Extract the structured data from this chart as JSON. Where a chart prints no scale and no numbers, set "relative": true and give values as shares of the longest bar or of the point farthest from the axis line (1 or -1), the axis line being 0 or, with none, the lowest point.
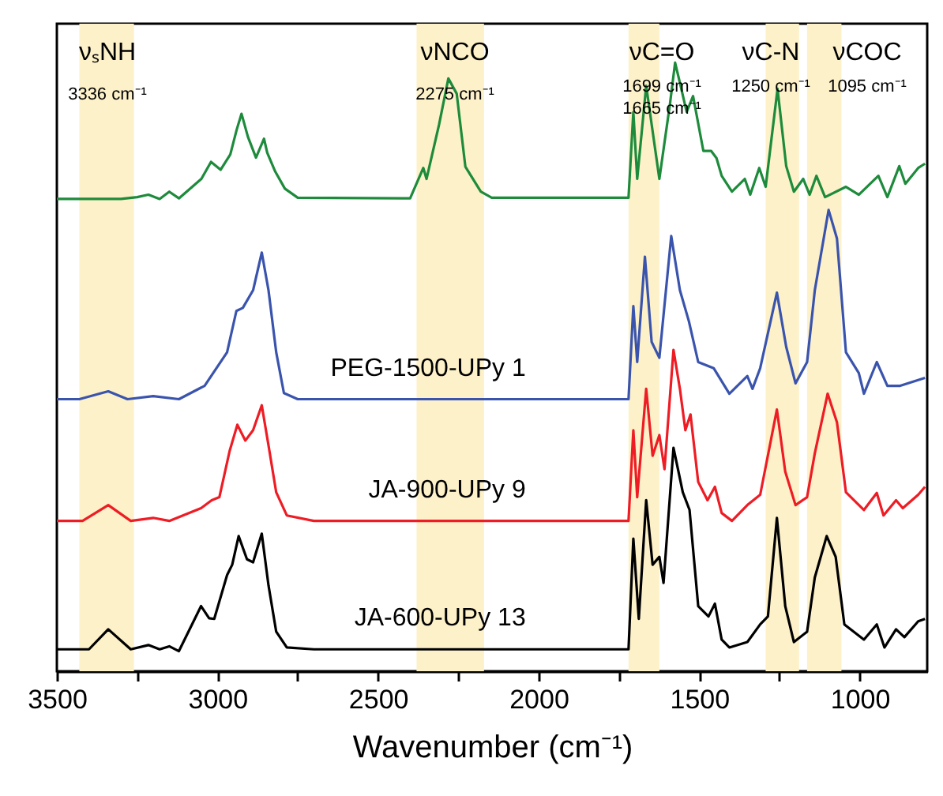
{
  "chart_data": {
    "type": "line",
    "xlabel": "Wavenumber (cm⁻¹)",
    "relative": true,
    "legend": false,
    "xlim": [
      3500,
      790
    ],
    "xticks": [
      {
        "value": 3500,
        "label": "3500"
      },
      {
        "value": 3250,
        "label": null
      },
      {
        "value": 3000,
        "label": "3000"
      },
      {
        "value": 2750,
        "label": null
      },
      {
        "value": 2500,
        "label": "2500"
      },
      {
        "value": 2250,
        "label": null
      },
      {
        "value": 2000,
        "label": "2000"
      },
      {
        "value": 1750,
        "label": null
      },
      {
        "value": 1500,
        "label": "1500"
      },
      {
        "value": 1250,
        "label": null
      },
      {
        "value": 1000,
        "label": "1000"
      }
    ],
    "bands": [
      {
        "axis": "x",
        "from": 3430,
        "to": 3260,
        "color": "#fdf1c9"
      },
      {
        "axis": "x",
        "from": 2380,
        "to": 2170,
        "color": "#fdf1c9"
      },
      {
        "axis": "x",
        "from": 1720,
        "to": 1624,
        "color": "#fdf1c9"
      },
      {
        "axis": "x",
        "from": 1293,
        "to": 1189,
        "color": "#fdf1c9"
      },
      {
        "axis": "x",
        "from": 1164,
        "to": 1057,
        "color": "#fdf1c9"
      }
    ],
    "annotations": [
      "νₛNH",
      "3336 cm⁻¹",
      "νNCO",
      "2275 cm⁻¹",
      "νC=O",
      "1699 cm⁻¹",
      "1665 cm⁻¹",
      "νC-N",
      "1250 cm⁻¹",
      "νCOC",
      "1095 cm⁻¹"
    ],
    "series": [
      {
        "color": "#1e8b3c",
        "x": [
          3500,
          3300,
          3250,
          3215,
          3180,
          3150,
          3120,
          3050,
          3020,
          2990,
          2960,
          2940,
          2925,
          2905,
          2880,
          2855,
          2845,
          2820,
          2790,
          2750,
          2400,
          2359,
          2349,
          2310,
          2281,
          2255,
          2228,
          2180,
          2146,
          1720,
          1705,
          1693,
          1665,
          1624,
          1591,
          1575,
          1560,
          1539,
          1519,
          1487,
          1463,
          1446,
          1430,
          1398,
          1358,
          1341,
          1313,
          1293,
          1256,
          1229,
          1205,
          1176,
          1156,
          1135,
          1108,
          1043,
          1003,
          942,
          914,
          877,
          858,
          818,
          797
        ],
        "values": [
          0.776,
          0.776,
          0.779,
          0.783,
          0.776,
          0.788,
          0.777,
          0.809,
          0.837,
          0.824,
          0.849,
          0.89,
          0.916,
          0.878,
          0.844,
          0.875,
          0.852,
          0.821,
          0.793,
          0.778,
          0.777,
          0.827,
          0.809,
          0.898,
          0.974,
          0.949,
          0.829,
          0.788,
          0.778,
          0.778,
          0.919,
          0.809,
          0.962,
          0.809,
          0.932,
          1.0,
          0.967,
          0.919,
          0.945,
          0.855,
          0.855,
          0.843,
          0.814,
          0.788,
          0.809,
          0.783,
          0.827,
          0.796,
          0.957,
          0.83,
          0.788,
          0.809,
          0.783,
          0.814,
          0.779,
          0.796,
          0.783,
          0.814,
          0.779,
          0.83,
          0.801,
          0.827,
          0.834
        ]
      },
      {
        "name": "PEG-1500-UPy 1",
        "color": "#3a54ad",
        "x": [
          3500,
          3430,
          3340,
          3280,
          3200,
          3120,
          3040,
          2970,
          2941,
          2921,
          2889,
          2862,
          2841,
          2817,
          2793,
          2750,
          1720,
          1705,
          1693,
          1669,
          1648,
          1624,
          1587,
          1560,
          1532,
          1503,
          1455,
          1406,
          1350,
          1334,
          1310,
          1258,
          1229,
          1200,
          1164,
          1140,
          1097,
          1071,
          1043,
          1003,
          987,
          947,
          914,
          874,
          797
        ],
        "values": [
          0.447,
          0.447,
          0.46,
          0.447,
          0.452,
          0.447,
          0.469,
          0.524,
          0.592,
          0.597,
          0.626,
          0.688,
          0.626,
          0.524,
          0.457,
          0.447,
          0.447,
          0.6,
          0.508,
          0.681,
          0.541,
          0.515,
          0.715,
          0.626,
          0.575,
          0.508,
          0.498,
          0.456,
          0.485,
          0.464,
          0.498,
          0.622,
          0.533,
          0.473,
          0.508,
          0.626,
          0.758,
          0.711,
          0.524,
          0.49,
          0.456,
          0.508,
          0.469,
          0.469,
          0.482
        ]
      },
      {
        "name": "JA-900-UPy 9",
        "color": "#ee1c24",
        "x": [
          3500,
          3420,
          3340,
          3270,
          3200,
          3150,
          3051,
          3018,
          2994,
          2962,
          2938,
          2913,
          2889,
          2862,
          2841,
          2817,
          2784,
          2700,
          1720,
          1705,
          1693,
          1665,
          1645,
          1624,
          1608,
          1580,
          1560,
          1543,
          1527,
          1503,
          1474,
          1451,
          1430,
          1398,
          1350,
          1310,
          1258,
          1232,
          1200,
          1164,
          1140,
          1100,
          1071,
          1043,
          987,
          947,
          926,
          887,
          866,
          818,
          797
        ],
        "values": [
          0.247,
          0.247,
          0.273,
          0.247,
          0.252,
          0.247,
          0.268,
          0.281,
          0.286,
          0.362,
          0.405,
          0.379,
          0.396,
          0.437,
          0.371,
          0.294,
          0.256,
          0.247,
          0.247,
          0.396,
          0.286,
          0.464,
          0.354,
          0.388,
          0.332,
          0.528,
          0.464,
          0.396,
          0.422,
          0.311,
          0.281,
          0.303,
          0.26,
          0.247,
          0.273,
          0.29,
          0.43,
          0.328,
          0.273,
          0.286,
          0.358,
          0.456,
          0.409,
          0.294,
          0.265,
          0.293,
          0.256,
          0.281,
          0.268,
          0.29,
          0.303
        ]
      },
      {
        "name": "JA-600-UPy 13",
        "color": "#000000",
        "x": [
          3500,
          3400,
          3340,
          3270,
          3215,
          3180,
          3150,
          3120,
          3051,
          3026,
          3010,
          2970,
          2954,
          2934,
          2908,
          2889,
          2862,
          2841,
          2817,
          2784,
          2700,
          1720,
          1705,
          1688,
          1665,
          1645,
          1624,
          1611,
          1580,
          1551,
          1530,
          1503,
          1471,
          1451,
          1430,
          1406,
          1350,
          1310,
          1286,
          1258,
          1232,
          1205,
          1164,
          1140,
          1103,
          1075,
          1048,
          987,
          947,
          923,
          887,
          861,
          818,
          797
        ],
        "values": [
          0.036,
          0.036,
          0.069,
          0.036,
          0.043,
          0.036,
          0.041,
          0.033,
          0.107,
          0.087,
          0.086,
          0.158,
          0.175,
          0.222,
          0.184,
          0.179,
          0.226,
          0.141,
          0.065,
          0.039,
          0.036,
          0.036,
          0.218,
          0.086,
          0.281,
          0.175,
          0.188,
          0.145,
          0.367,
          0.294,
          0.265,
          0.107,
          0.09,
          0.111,
          0.052,
          0.039,
          0.048,
          0.077,
          0.09,
          0.252,
          0.107,
          0.048,
          0.065,
          0.154,
          0.222,
          0.188,
          0.077,
          0.052,
          0.077,
          0.039,
          0.069,
          0.056,
          0.082,
          0.086
        ]
      }
    ]
  }
}
